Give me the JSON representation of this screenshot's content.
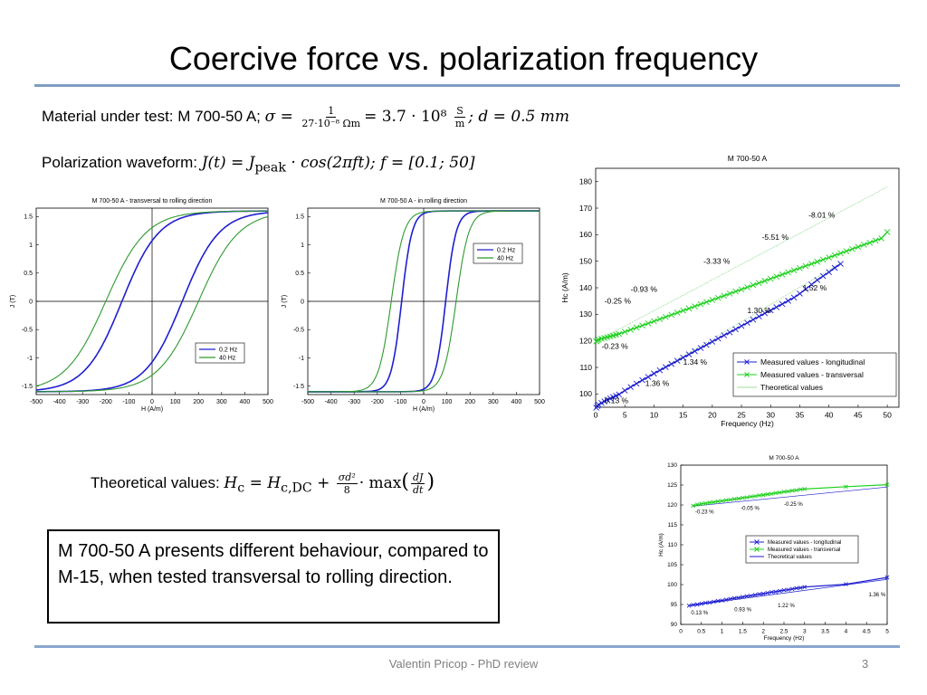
{
  "slide": {
    "title": "Coercive force vs. polarization frequency",
    "material_prefix": "Material under test: M 700-50 A;",
    "waveform_prefix": "Polarization waveform:",
    "theory_prefix": "Theoretical values:",
    "callout": "M 700-50 A presents different behaviour, compared to M-15, when tested transversal to rolling direction.",
    "footer_author": "Valentin Pricop - PhD review",
    "page_number": "3"
  },
  "equations": {
    "sigma_lhs": "σ =",
    "sigma_num": "1",
    "sigma_den": "27·10⁻⁸ Ωm",
    "sigma_mid": "= 3.7 · 10⁸",
    "sigma_unit_num": "S",
    "sigma_unit_den": "m",
    "thickness": "; d = 0.5 mm",
    "waveform": "J(t) = J",
    "waveform_sub": "peak",
    "waveform_rest": " · cos(2πft); f = [0.1; 50]",
    "theory_lhs": "H",
    "theory_lhs_sub": "c",
    "theory_eq": " = H",
    "theory_eq_sub": "c,DC",
    "theory_plus": " +",
    "theory_num": "σd²",
    "theory_den": "8",
    "theory_max": "· max",
    "theory_dnum": "dJ",
    "theory_dden": "dt"
  },
  "colors": {
    "series_blue": "#1f1fd0",
    "series_green": "#1fd01f",
    "green_curve": "#2e9a2e",
    "rule": "#7f9cc4",
    "theory_line": "#9fdf9f"
  },
  "chart_data": [
    {
      "id": "hyst_transversal",
      "type": "line",
      "title": "M 700-50 A - transversal to rolling direction",
      "xlabel": "H (A/m)",
      "ylabel": "J (T)",
      "xlim": [
        -500,
        500
      ],
      "ylim": [
        -1.65,
        1.65
      ],
      "xticks": [
        -500,
        -400,
        -300,
        -200,
        -100,
        0,
        100,
        200,
        300,
        400,
        500
      ],
      "yticks": [
        -1.5,
        -1,
        -0.5,
        0,
        0.5,
        1,
        1.5
      ],
      "legend": [
        "0.2 Hz",
        "40 Hz"
      ],
      "legend_position": "bottom-right",
      "series": [
        {
          "name": "0.2 Hz",
          "Hc": 130,
          "Jsat": 1.6,
          "steep": 160
        },
        {
          "name": "40 Hz",
          "Hc": 200,
          "Jsat": 1.6,
          "steep": 175
        }
      ]
    },
    {
      "id": "hyst_rolling",
      "type": "line",
      "title": "M 700-50 A - in rolling direction",
      "xlabel": "H (A/m)",
      "ylabel": "J (T)",
      "xlim": [
        -500,
        500
      ],
      "ylim": [
        -1.65,
        1.65
      ],
      "xticks": [
        -500,
        -400,
        -300,
        -200,
        -100,
        0,
        100,
        200,
        300,
        400,
        500
      ],
      "yticks": [
        -1.5,
        -1,
        -0.5,
        0,
        0.5,
        1,
        1.5
      ],
      "legend": [
        "0.2 Hz",
        "40 Hz"
      ],
      "legend_position": "top-right",
      "series": [
        {
          "name": "0.2 Hz",
          "Hc": 95,
          "Jsat": 1.6,
          "steep": 45
        },
        {
          "name": "40 Hz",
          "Hc": 140,
          "Jsat": 1.6,
          "steep": 55
        }
      ]
    },
    {
      "id": "hc_full",
      "type": "line",
      "title": "M 700-50 A",
      "xlabel": "Frequency (Hz)",
      "ylabel": "Hc (A/m)",
      "xlim": [
        0,
        52
      ],
      "ylim": [
        95,
        185
      ],
      "xticks": [
        0,
        5,
        10,
        15,
        20,
        25,
        30,
        35,
        40,
        45,
        50
      ],
      "yticks": [
        100,
        110,
        120,
        130,
        140,
        150,
        160,
        170,
        180
      ],
      "legend": [
        "Measured values - longitudinal",
        "Measured values - transversal",
        "Theoretical values"
      ],
      "legend_position": "bottom-right",
      "series": [
        {
          "name": "Measured values - longitudinal",
          "x": [
            0.1,
            0.3,
            0.5,
            1,
            1.5,
            2,
            2.5,
            3,
            3.5,
            4,
            5,
            6,
            7,
            8,
            9,
            10,
            11,
            12,
            13,
            14,
            15,
            16,
            17,
            18,
            19,
            20,
            21,
            22,
            23,
            24,
            25,
            26,
            27,
            28,
            29,
            30,
            31,
            32,
            33,
            34,
            35,
            36,
            37,
            38,
            39,
            40,
            41,
            42
          ],
          "y": [
            94.8,
            95.5,
            96.0,
            96.6,
            97.2,
            97.8,
            98.3,
            98.8,
            99.3,
            99.8,
            101.3,
            102.6,
            103.9,
            105.2,
            106.4,
            107.7,
            108.9,
            110.1,
            111.3,
            112.5,
            113.7,
            114.9,
            116.1,
            117.3,
            118.5,
            119.7,
            120.9,
            122.1,
            123.2,
            124.4,
            125.6,
            126.8,
            128.0,
            129.2,
            130.4,
            131.5,
            132.7,
            133.9,
            135.1,
            136.3,
            137.8,
            139.5,
            141.2,
            142.9,
            144.4,
            145.9,
            147.5,
            149.0
          ]
        },
        {
          "name": "Measured values - transversal",
          "x": [
            0.1,
            0.3,
            0.5,
            1,
            1.5,
            2,
            2.5,
            3,
            3.5,
            4,
            5,
            6,
            7,
            8,
            9,
            10,
            11,
            12,
            13,
            14,
            15,
            16,
            17,
            18,
            19,
            20,
            21,
            22,
            23,
            24,
            25,
            26,
            27,
            28,
            29,
            30,
            31,
            32,
            33,
            34,
            35,
            36,
            37,
            38,
            39,
            40,
            41,
            42,
            43,
            44,
            45,
            46,
            47,
            48,
            49,
            50
          ],
          "y": [
            119.8,
            120.2,
            120.5,
            120.8,
            121.1,
            121.4,
            121.7,
            122.0,
            122.3,
            122.6,
            123.4,
            124.2,
            125.0,
            125.8,
            126.6,
            127.4,
            128.2,
            129.0,
            129.8,
            130.6,
            131.4,
            132.2,
            133.0,
            133.8,
            134.6,
            135.4,
            136.2,
            137.0,
            137.8,
            138.6,
            139.4,
            140.2,
            141.0,
            141.8,
            142.6,
            143.4,
            144.2,
            145.0,
            145.8,
            146.6,
            147.4,
            148.2,
            149.0,
            149.8,
            150.6,
            151.4,
            152.2,
            153.0,
            153.8,
            154.6,
            155.4,
            156.2,
            157.0,
            157.8,
            158.6,
            161.0
          ]
        },
        {
          "name": "Theoretical values",
          "x": [
            0,
            42
          ],
          "y": [
            94.7,
            149.3
          ]
        },
        {
          "name": "Theoretical values",
          "x": [
            0,
            50
          ],
          "y": [
            119.7,
            178.0
          ]
        }
      ],
      "annotations": [
        {
          "text": "-8.01 %",
          "x": 36.5,
          "y": 166.5
        },
        {
          "text": "-5.51 %",
          "x": 28.5,
          "y": 158.0
        },
        {
          "text": "-3.33 %",
          "x": 18.5,
          "y": 149.0
        },
        {
          "text": "-0.93 %",
          "x": 6.0,
          "y": 138.5
        },
        {
          "text": "-0.25 %",
          "x": 1.5,
          "y": 134.0
        },
        {
          "text": "1.52 %",
          "x": 35.5,
          "y": 139.0
        },
        {
          "text": "1.30 %",
          "x": 26.0,
          "y": 130.5
        },
        {
          "text": "-0.23 %",
          "x": 1.0,
          "y": 117.0
        },
        {
          "text": "1.34 %",
          "x": 15.0,
          "y": 111.0
        },
        {
          "text": "1.36 %",
          "x": 8.5,
          "y": 103.0
        },
        {
          "text": "0.13 %",
          "x": 1.5,
          "y": 96.5
        }
      ]
    },
    {
      "id": "hc_zoom",
      "type": "line",
      "title": "M 700-50 A",
      "xlabel": "Frequency (Hz)",
      "ylabel": "Hc (A/m)",
      "xlim": [
        0,
        5
      ],
      "ylim": [
        90,
        130
      ],
      "xticks": [
        0,
        0.5,
        1,
        1.5,
        2,
        2.5,
        3,
        3.5,
        4,
        4.5,
        5
      ],
      "yticks": [
        90,
        95,
        100,
        105,
        110,
        115,
        120,
        125,
        130
      ],
      "legend": [
        "Measured values - longitudinal",
        "Measured values - transversal",
        "Theoretical values"
      ],
      "legend_position": "center-right",
      "series": [
        {
          "name": "Measured values - longitudinal",
          "x": [
            0.2,
            0.3,
            0.4,
            0.5,
            0.6,
            0.7,
            0.8,
            0.9,
            1.0,
            1.1,
            1.2,
            1.3,
            1.4,
            1.5,
            1.6,
            1.7,
            1.8,
            1.9,
            2.0,
            2.1,
            2.2,
            2.3,
            2.4,
            2.5,
            2.6,
            2.7,
            2.8,
            2.9,
            3.0,
            4.0,
            5.0
          ],
          "y": [
            94.7,
            94.9,
            95.0,
            95.2,
            95.4,
            95.5,
            95.7,
            95.9,
            96.0,
            96.2,
            96.4,
            96.6,
            96.7,
            96.9,
            97.1,
            97.2,
            97.4,
            97.6,
            97.7,
            97.9,
            98.1,
            98.2,
            98.4,
            98.6,
            98.7,
            98.9,
            99.1,
            99.2,
            99.4,
            100.1,
            101.8
          ]
        },
        {
          "name": "Measured values - transversal",
          "x": [
            0.3,
            0.4,
            0.5,
            0.6,
            0.7,
            0.8,
            0.9,
            1.0,
            1.1,
            1.2,
            1.3,
            1.4,
            1.5,
            1.6,
            1.7,
            1.8,
            1.9,
            2.0,
            2.1,
            2.2,
            2.3,
            2.4,
            2.5,
            2.6,
            2.7,
            2.8,
            2.9,
            3.0,
            4.0,
            5.0
          ],
          "y": [
            119.8,
            120.1,
            120.3,
            120.4,
            120.6,
            120.7,
            120.9,
            121.0,
            121.2,
            121.3,
            121.5,
            121.6,
            121.8,
            121.9,
            122.1,
            122.2,
            122.4,
            122.5,
            122.7,
            122.8,
            123.0,
            123.1,
            123.3,
            123.4,
            123.6,
            123.7,
            123.9,
            124.0,
            124.6,
            125.1
          ]
        },
        {
          "name": "Theoretical values",
          "x": [
            0.2,
            5
          ],
          "y": [
            94.7,
            101.3
          ]
        },
        {
          "name": "Theoretical values",
          "x": [
            0.3,
            5
          ],
          "y": [
            119.7,
            124.5
          ]
        }
      ],
      "annotations": [
        {
          "text": "-0.23 %",
          "x": 0.35,
          "y": 117.8
        },
        {
          "text": "-0.05 %",
          "x": 1.45,
          "y": 118.8
        },
        {
          "text": "-0.25 %",
          "x": 2.5,
          "y": 119.8
        },
        {
          "text": "0.13 %",
          "x": 0.25,
          "y": 92.5
        },
        {
          "text": "0.93 %",
          "x": 1.3,
          "y": 93.3
        },
        {
          "text": "1.22 %",
          "x": 2.35,
          "y": 94.3
        },
        {
          "text": "1.36 %",
          "x": 4.55,
          "y": 97.0
        }
      ]
    }
  ]
}
